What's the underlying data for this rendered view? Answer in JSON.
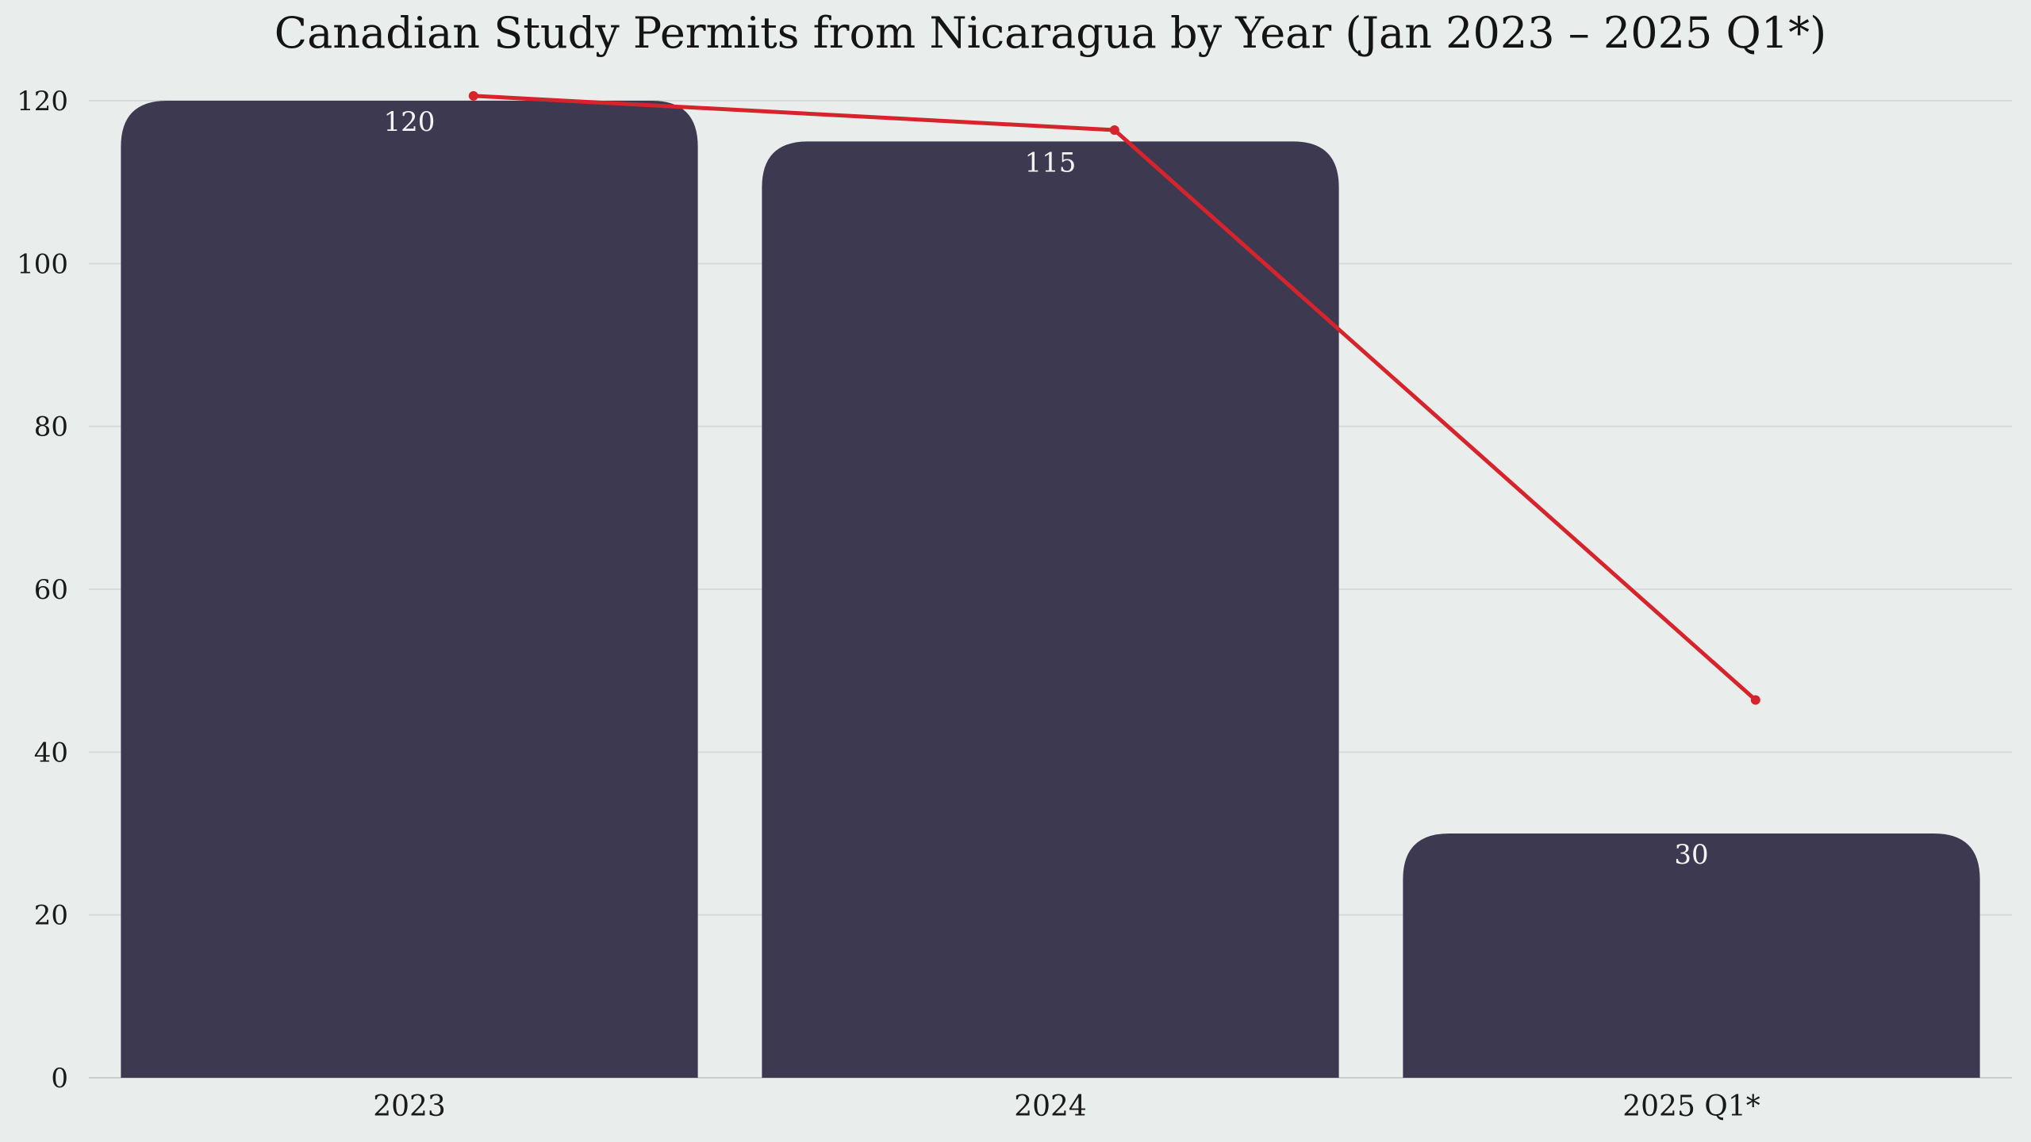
{
  "chart_data": {
    "type": "bar",
    "title": "Canadian Study Permits from Nicaragua by Year (Jan 2023 – 2025 Q1*)",
    "xlabel": "",
    "ylabel": "",
    "categories": [
      "2023",
      "2024",
      "2025 Q1*"
    ],
    "values": [
      120,
      115,
      30
    ],
    "value_labels": [
      "120",
      "115",
      "30"
    ],
    "line_values": [
      120.6,
      116.4,
      46.4
    ],
    "ylim": [
      0,
      120
    ],
    "yticks": [
      0,
      20,
      40,
      60,
      80,
      100,
      120
    ],
    "ytick_labels": [
      "0",
      "20",
      "40",
      "60",
      "80",
      "100",
      "120"
    ],
    "grid": true,
    "legend": "none",
    "colors": {
      "bar": "#3d3950",
      "line": "#d7232c",
      "background": "#e9edeb"
    }
  }
}
